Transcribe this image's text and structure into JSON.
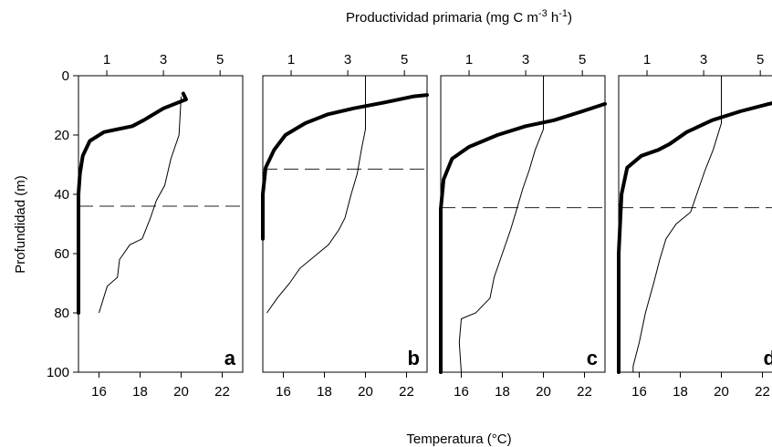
{
  "chart_data": {
    "type": "line",
    "top_axis_title": "Productividad primaria (mg C m",
    "top_axis_sup1": "-3",
    "top_axis_mid": " h",
    "top_axis_sup2": "-1",
    "top_axis_end": ")",
    "xlabel": "Temperatura (°C)",
    "ylabel": "Profundidad (m)",
    "ylim": [
      0,
      100
    ],
    "y_ticks": [
      "0",
      "20",
      "40",
      "60",
      "80",
      "100"
    ],
    "temperature_xlim": [
      15,
      23
    ],
    "temperature_ticks": [
      "16",
      "18",
      "20",
      "22"
    ],
    "productivity_xlim": [
      0,
      5.8
    ],
    "productivity_ticks": [
      "1",
      "3",
      "5"
    ],
    "series_styles": {
      "productivity": "thick black line (top axis)",
      "temperature": "thin black line (bottom axis)",
      "mixed_layer_depth": "dashed horizontal line"
    },
    "panels": [
      {
        "label": "a",
        "mixed_layer_depth": 44,
        "productivity": [
          [
            3.7,
            6
          ],
          [
            3.8,
            8
          ],
          [
            3.0,
            11
          ],
          [
            2.3,
            15
          ],
          [
            1.9,
            17
          ],
          [
            0.9,
            19
          ],
          [
            0.4,
            22
          ],
          [
            0.15,
            27
          ],
          [
            0.05,
            33
          ],
          [
            0.0,
            40
          ],
          [
            0.0,
            60
          ],
          [
            0.0,
            80
          ]
        ],
        "temperature": [
          [
            20.0,
            7
          ],
          [
            19.9,
            20
          ],
          [
            19.5,
            28
          ],
          [
            19.2,
            37
          ],
          [
            18.8,
            42
          ],
          [
            18.5,
            48
          ],
          [
            18.1,
            55
          ],
          [
            17.5,
            57
          ],
          [
            17.0,
            62
          ],
          [
            16.9,
            68
          ],
          [
            16.4,
            71
          ],
          [
            16.0,
            80
          ]
        ]
      },
      {
        "label": "b",
        "mixed_layer_depth": 31.5,
        "productivity": [
          [
            5.8,
            6.5
          ],
          [
            5.3,
            7
          ],
          [
            4.3,
            9
          ],
          [
            3.2,
            11
          ],
          [
            2.3,
            13
          ],
          [
            1.5,
            16
          ],
          [
            0.8,
            20
          ],
          [
            0.4,
            25
          ],
          [
            0.1,
            31
          ],
          [
            0.0,
            40
          ],
          [
            0.0,
            55
          ]
        ],
        "temperature": [
          [
            20.0,
            0
          ],
          [
            20.0,
            18
          ],
          [
            19.8,
            25
          ],
          [
            19.6,
            33
          ],
          [
            19.3,
            40
          ],
          [
            19.0,
            48
          ],
          [
            18.7,
            52
          ],
          [
            18.2,
            57
          ],
          [
            17.5,
            61
          ],
          [
            16.8,
            65
          ],
          [
            16.3,
            70
          ],
          [
            15.7,
            75
          ],
          [
            15.2,
            80
          ]
        ]
      },
      {
        "label": "c",
        "mixed_layer_depth": 44.5,
        "productivity": [
          [
            5.8,
            9.5
          ],
          [
            5.0,
            12
          ],
          [
            4.0,
            15
          ],
          [
            3.0,
            17
          ],
          [
            2.0,
            20
          ],
          [
            1.0,
            24
          ],
          [
            0.4,
            28
          ],
          [
            0.1,
            35
          ],
          [
            0.0,
            45
          ],
          [
            0.0,
            70
          ],
          [
            0.0,
            100
          ]
        ],
        "temperature": [
          [
            20.0,
            0
          ],
          [
            20.0,
            18
          ],
          [
            19.6,
            25
          ],
          [
            19.3,
            32
          ],
          [
            19.0,
            38
          ],
          [
            18.7,
            45
          ],
          [
            18.4,
            52
          ],
          [
            18.0,
            60
          ],
          [
            17.6,
            68
          ],
          [
            17.4,
            75
          ],
          [
            16.7,
            80
          ],
          [
            16.0,
            82
          ],
          [
            15.9,
            90
          ],
          [
            16.0,
            100
          ]
        ]
      },
      {
        "label": "d",
        "mixed_layer_depth": 44.5,
        "productivity": [
          [
            5.8,
            8.5
          ],
          [
            5.3,
            9.5
          ],
          [
            4.3,
            12
          ],
          [
            3.3,
            15
          ],
          [
            2.4,
            19
          ],
          [
            1.8,
            23
          ],
          [
            1.4,
            25
          ],
          [
            0.8,
            27
          ],
          [
            0.3,
            31
          ],
          [
            0.1,
            40
          ],
          [
            0.0,
            60
          ],
          [
            0.0,
            100
          ]
        ],
        "temperature": [
          [
            20.0,
            0
          ],
          [
            20.0,
            16
          ],
          [
            19.6,
            25
          ],
          [
            19.2,
            32
          ],
          [
            18.8,
            40
          ],
          [
            18.5,
            46
          ],
          [
            17.8,
            50
          ],
          [
            17.3,
            55
          ],
          [
            17.0,
            62
          ],
          [
            16.7,
            70
          ],
          [
            16.3,
            80
          ],
          [
            16.0,
            90
          ],
          [
            15.7,
            98
          ],
          [
            15.7,
            100
          ]
        ]
      }
    ]
  }
}
